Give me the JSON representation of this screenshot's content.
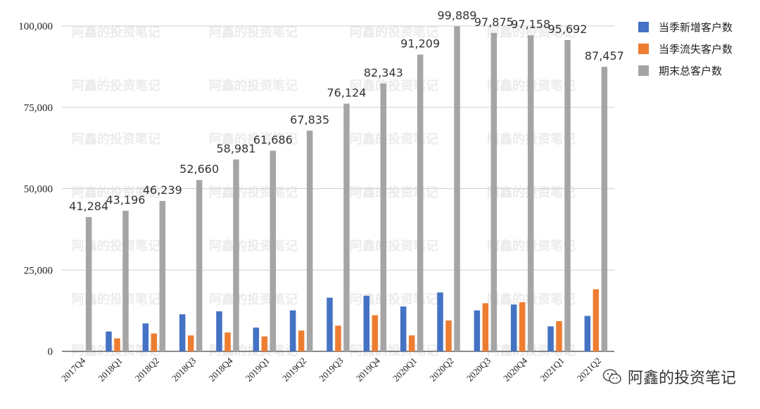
{
  "watermark": {
    "text": "阿鑫的投资笔记"
  },
  "brand": {
    "text": "阿鑫的投资笔记",
    "icon": "wechat-icon"
  },
  "chart_data": {
    "type": "bar",
    "title": "",
    "xlabel": "",
    "ylabel": "",
    "ylim": [
      0,
      100000
    ],
    "yticks": [
      0,
      25000,
      50000,
      75000,
      100000
    ],
    "ytick_labels": [
      "0",
      "25,000",
      "50,000",
      "75,000",
      "100,000"
    ],
    "grid": true,
    "legend_position": "top-right",
    "categories": [
      "2017Q4",
      "2018Q1",
      "2018Q2",
      "2018Q3",
      "2018Q4",
      "2019Q1",
      "2019Q2",
      "2019Q3",
      "2019Q4",
      "2020Q1",
      "2020Q2",
      "2020Q3",
      "2020Q4",
      "2021Q1",
      "2021Q2"
    ],
    "series": [
      {
        "name": "当季新增客户数",
        "color": "#4472C4",
        "values": [
          0,
          6100,
          8600,
          11400,
          12300,
          7300,
          12600,
          16500,
          17100,
          13800,
          18100,
          12600,
          14400,
          7700,
          10900
        ]
      },
      {
        "name": "当季流失客户数",
        "color": "#ED7D31",
        "values": [
          0,
          4000,
          5500,
          4900,
          5800,
          4600,
          6400,
          7900,
          11100,
          4900,
          9500,
          14800,
          15100,
          9300,
          19100
        ]
      },
      {
        "name": "期末总客户数",
        "color": "#A5A5A5",
        "values": [
          41284,
          43196,
          46239,
          52660,
          58981,
          61686,
          67835,
          76124,
          82343,
          91209,
          99889,
          97875,
          97158,
          95692,
          87457
        ],
        "labels": [
          "41,284",
          "43,196",
          "46,239",
          "52,660",
          "58,981",
          "61,686",
          "67,835",
          "76,124",
          "82,343",
          "91,209",
          "99,889",
          "97,875",
          "97,158",
          "95,692",
          "87,457"
        ]
      }
    ]
  }
}
